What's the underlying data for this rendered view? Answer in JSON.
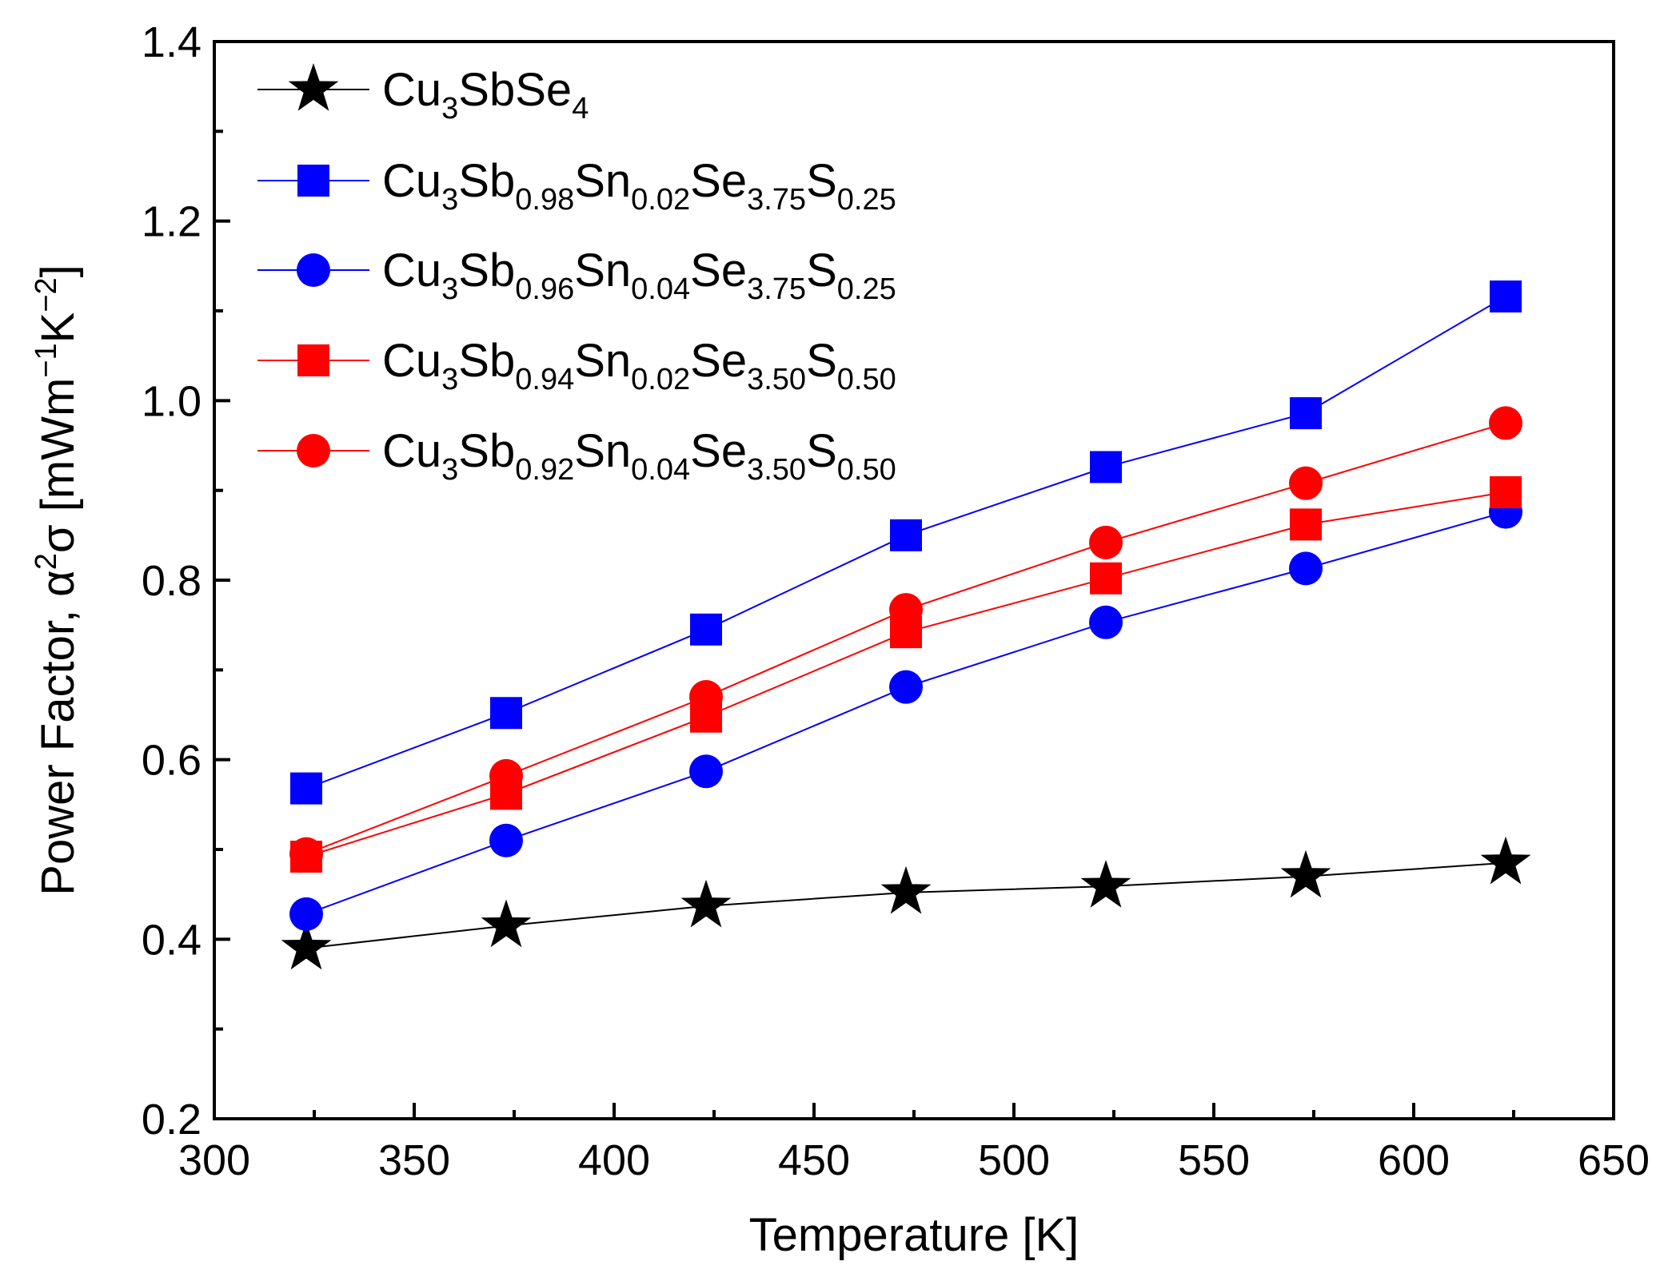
{
  "chart_data": {
    "type": "line",
    "title": "",
    "xlabel": "Temperature [K]",
    "ylabel": {
      "prefix": "Power Factor, ",
      "alpha": "α",
      "alpha_sup": "2",
      "sigma": "σ",
      "unit_open": " [mWm",
      "unit_sup1": "−1",
      "unit_k": "K",
      "unit_sup2": "−2",
      "unit_close": "]"
    },
    "xlim": [
      300,
      650
    ],
    "ylim": [
      0.2,
      1.4
    ],
    "xticks": [
      "300",
      "350",
      "400",
      "450",
      "500",
      "550",
      "600",
      "650"
    ],
    "yticks": [
      "0.2",
      "0.4",
      "0.6",
      "0.8",
      "1.0",
      "1.2",
      "1.4"
    ],
    "x": [
      323,
      373,
      423,
      473,
      523,
      573,
      623
    ],
    "legend_position": "top-left",
    "series": [
      {
        "name": "Cu3SbSe4",
        "label_parts": [
          [
            "Cu",
            "base"
          ],
          [
            "3",
            "sub"
          ],
          [
            "SbSe",
            "base"
          ],
          [
            "4",
            "sub"
          ]
        ],
        "color": "#000000",
        "marker": "star",
        "values": [
          0.39,
          0.415,
          0.437,
          0.452,
          0.459,
          0.47,
          0.485
        ]
      },
      {
        "name": "Cu3Sb0.98Sn0.02Se3.75S0.25",
        "label_parts": [
          [
            "Cu",
            "base"
          ],
          [
            "3",
            "sub"
          ],
          [
            "Sb",
            "base"
          ],
          [
            "0.98",
            "sub"
          ],
          [
            "Sn",
            "base"
          ],
          [
            "0.02",
            "sub"
          ],
          [
            "Se",
            "base"
          ],
          [
            "3.75",
            "sub"
          ],
          [
            "S",
            "base"
          ],
          [
            "0.25",
            "sub"
          ]
        ],
        "color": "#0000ff",
        "marker": "square",
        "values": [
          0.568,
          0.652,
          0.745,
          0.85,
          0.926,
          0.986,
          1.116
        ]
      },
      {
        "name": "Cu3Sb0.96Sn0.04Se3.75S0.25",
        "label_parts": [
          [
            "Cu",
            "base"
          ],
          [
            "3",
            "sub"
          ],
          [
            "Sb",
            "base"
          ],
          [
            "0.96",
            "sub"
          ],
          [
            "Sn",
            "base"
          ],
          [
            "0.04",
            "sub"
          ],
          [
            "Se",
            "base"
          ],
          [
            "3.75",
            "sub"
          ],
          [
            "S",
            "base"
          ],
          [
            "0.25",
            "sub"
          ]
        ],
        "color": "#0000ff",
        "marker": "circle",
        "values": [
          0.428,
          0.51,
          0.587,
          0.681,
          0.753,
          0.813,
          0.876
        ]
      },
      {
        "name": "Cu3Sb0.94Sn0.02Se3.50S0.50",
        "label_parts": [
          [
            "Cu",
            "base"
          ],
          [
            "3",
            "sub"
          ],
          [
            "Sb",
            "base"
          ],
          [
            "0.94",
            "sub"
          ],
          [
            "Sn",
            "base"
          ],
          [
            "0.02",
            "sub"
          ],
          [
            "Se",
            "base"
          ],
          [
            "3.50",
            "sub"
          ],
          [
            "S",
            "base"
          ],
          [
            "0.50",
            "sub"
          ]
        ],
        "color": "#ff0000",
        "marker": "square",
        "values": [
          0.492,
          0.562,
          0.648,
          0.742,
          0.802,
          0.862,
          0.898
        ]
      },
      {
        "name": "Cu3Sb0.92Sn0.04Se3.50S0.50",
        "label_parts": [
          [
            "Cu",
            "base"
          ],
          [
            "3",
            "sub"
          ],
          [
            "Sb",
            "base"
          ],
          [
            "0.92",
            "sub"
          ],
          [
            "Sn",
            "base"
          ],
          [
            "0.04",
            "sub"
          ],
          [
            "Se",
            "base"
          ],
          [
            "3.50",
            "sub"
          ],
          [
            "S",
            "base"
          ],
          [
            "0.50",
            "sub"
          ]
        ],
        "color": "#ff0000",
        "marker": "circle",
        "values": [
          0.495,
          0.582,
          0.67,
          0.767,
          0.842,
          0.908,
          0.975
        ]
      }
    ]
  }
}
